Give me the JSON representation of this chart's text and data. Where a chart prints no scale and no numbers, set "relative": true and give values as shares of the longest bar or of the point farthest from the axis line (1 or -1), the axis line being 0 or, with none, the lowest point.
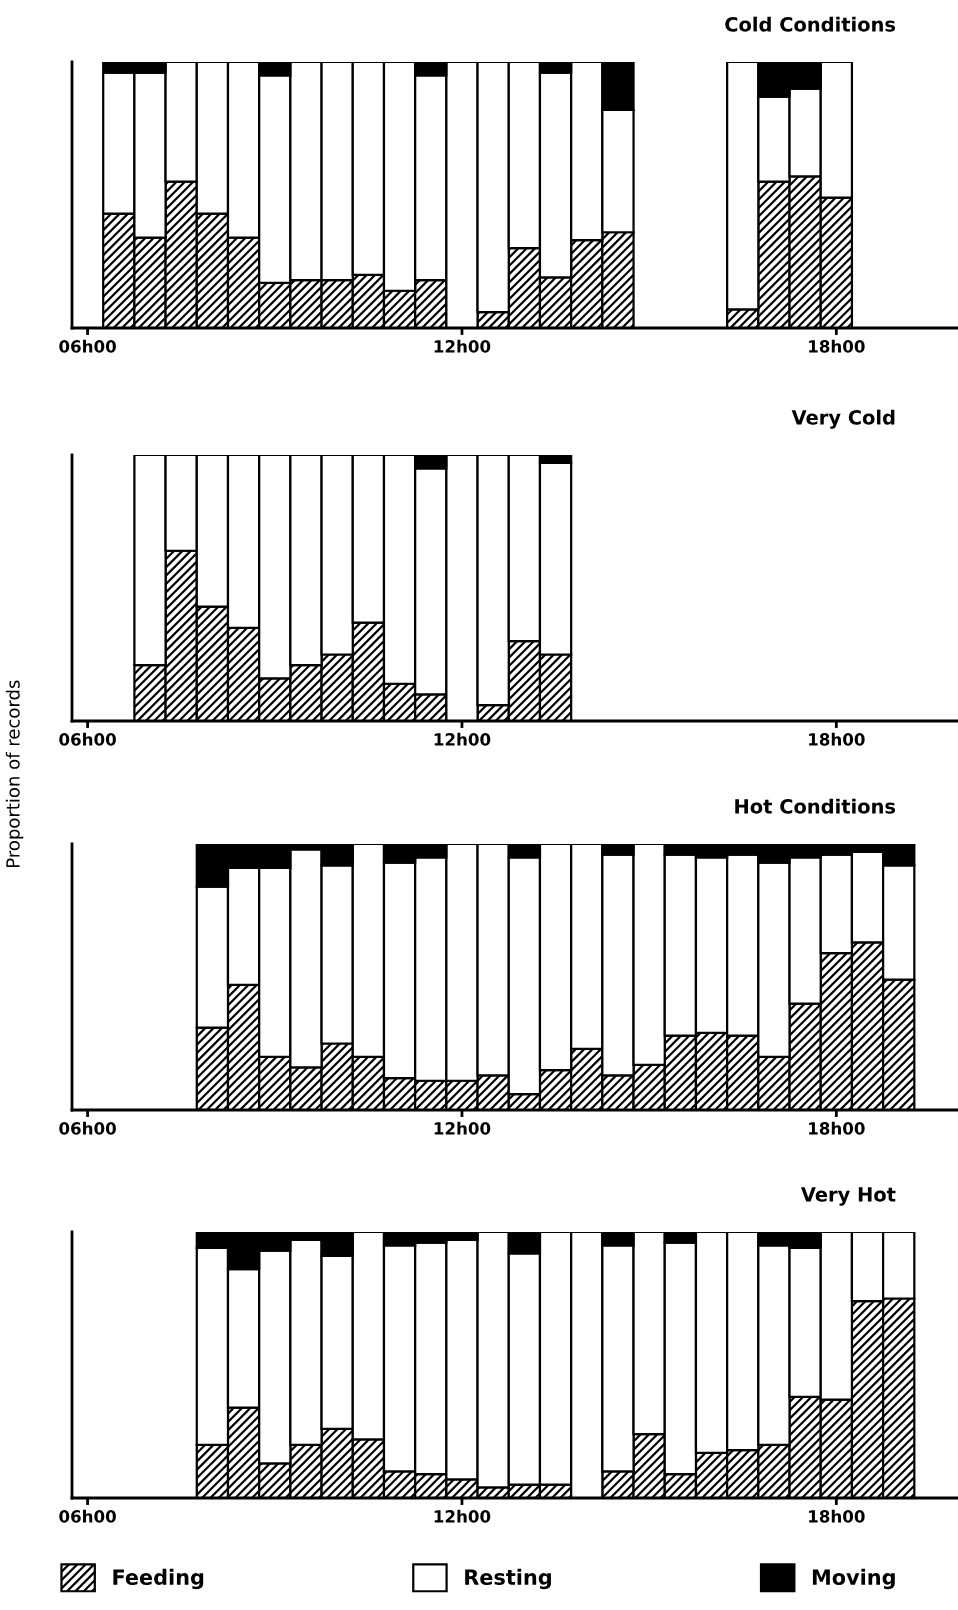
{
  "chart_data": [
    {
      "type": "bar",
      "title": "Cold Conditions",
      "stacked": true,
      "relative": true,
      "tick_labels": "x",
      "legend": false,
      "categories": [
        "06h00",
        null,
        null,
        null,
        null,
        null,
        null,
        null,
        null,
        null,
        null,
        null,
        "12h00",
        null,
        null,
        null,
        null,
        null,
        null,
        null,
        null,
        null,
        null,
        null,
        "18h00",
        null,
        null,
        null
      ],
      "series": [
        {
          "color": "#000000",
          "values": [
            null,
            0.43,
            0.34,
            0.55,
            0.43,
            0.34,
            0.17,
            0.18,
            0.18,
            0.2,
            0.14,
            0.18,
            0,
            0.06,
            0.3,
            0.19,
            0.33,
            0.36,
            null,
            null,
            null,
            0.07,
            0.55,
            0.57,
            0.49,
            null,
            null,
            null
          ]
        },
        {
          "color": "#ffffff",
          "values": [
            null,
            0.53,
            0.62,
            0.45,
            0.57,
            0.66,
            0.78,
            0.82,
            0.82,
            0.8,
            0.86,
            0.77,
            1,
            0.94,
            0.7,
            0.77,
            0.67,
            0.46,
            null,
            null,
            null,
            0.93,
            0.32,
            0.33,
            0.51,
            null,
            null,
            null
          ]
        },
        {
          "color": "#000000",
          "values": [
            null,
            0.04,
            0.04,
            0,
            0,
            0,
            0.05,
            0,
            0,
            0,
            0,
            0.05,
            0,
            0,
            0,
            0.04,
            0,
            0.18,
            null,
            null,
            null,
            0,
            0.13,
            0.1,
            0,
            null,
            null,
            null
          ]
        }
      ]
    },
    {
      "type": "bar",
      "title": "Very Cold",
      "ylabel": "Proportion of records",
      "stacked": true,
      "relative": true,
      "tick_labels": "x",
      "legend": false,
      "categories": [
        "06h00",
        null,
        null,
        null,
        null,
        null,
        null,
        null,
        null,
        null,
        null,
        null,
        "12h00",
        null,
        null,
        null,
        null,
        null,
        null,
        null,
        null,
        null,
        null,
        null,
        "18h00",
        null,
        null,
        null
      ],
      "series": [
        {
          "color": "#000000",
          "values": [
            null,
            null,
            0.21,
            0.64,
            0.43,
            0.35,
            0.16,
            0.21,
            0.25,
            0.37,
            0.14,
            0.1,
            0,
            0.06,
            0.3,
            0.25,
            null,
            null,
            null,
            null,
            null,
            null,
            null,
            null,
            null,
            null,
            null,
            null
          ]
        },
        {
          "color": "#ffffff",
          "values": [
            null,
            null,
            0.79,
            0.36,
            0.57,
            0.65,
            0.84,
            0.79,
            0.75,
            0.63,
            0.86,
            0.85,
            1,
            0.94,
            0.7,
            0.72,
            null,
            null,
            null,
            null,
            null,
            null,
            null,
            null,
            null,
            null,
            null,
            null
          ]
        },
        {
          "color": "#000000",
          "values": [
            null,
            null,
            0,
            0,
            0,
            0,
            0,
            0,
            0,
            0,
            0,
            0.05,
            0,
            0,
            0,
            0.03,
            null,
            null,
            null,
            null,
            null,
            null,
            null,
            null,
            null,
            null,
            null,
            null
          ]
        }
      ]
    },
    {
      "type": "bar",
      "title": "Hot Conditions",
      "stacked": true,
      "relative": true,
      "tick_labels": "x",
      "legend": false,
      "categories": [
        "06h00",
        null,
        null,
        null,
        null,
        null,
        null,
        null,
        null,
        null,
        null,
        null,
        "12h00",
        null,
        null,
        null,
        null,
        null,
        null,
        null,
        null,
        null,
        null,
        null,
        "18h00",
        null,
        null,
        null
      ],
      "series": [
        {
          "color": "#000000",
          "values": [
            null,
            null,
            null,
            null,
            0.31,
            0.47,
            0.2,
            0.16,
            0.25,
            0.2,
            0.12,
            0.11,
            0.11,
            0.13,
            0.06,
            0.15,
            0.23,
            0.13,
            0.17,
            0.28,
            0.29,
            0.28,
            0.2,
            0.4,
            0.59,
            0.63,
            0.49,
            null
          ]
        },
        {
          "color": "#ffffff",
          "values": [
            null,
            null,
            null,
            null,
            0.53,
            0.44,
            0.71,
            0.82,
            0.67,
            0.8,
            0.81,
            0.84,
            0.89,
            0.87,
            0.89,
            0.85,
            0.77,
            0.83,
            0.83,
            0.68,
            0.66,
            0.68,
            0.73,
            0.55,
            0.37,
            0.34,
            0.43,
            null
          ]
        },
        {
          "color": "#000000",
          "values": [
            null,
            null,
            null,
            null,
            0.16,
            0.09,
            0.09,
            0.02,
            0.08,
            0,
            0.07,
            0.05,
            0,
            0,
            0.05,
            0,
            0,
            0.04,
            0,
            0.04,
            0.05,
            0.04,
            0.07,
            0.05,
            0.04,
            0.03,
            0.08,
            null
          ]
        }
      ]
    },
    {
      "type": "bar",
      "title": "Very Hot",
      "stacked": true,
      "relative": true,
      "tick_labels": "x",
      "legend": "bottom",
      "categories": [
        "06h00",
        null,
        null,
        null,
        null,
        null,
        null,
        null,
        null,
        null,
        null,
        null,
        "12h00",
        null,
        null,
        null,
        null,
        null,
        null,
        null,
        null,
        null,
        null,
        null,
        "18h00",
        null,
        null,
        null
      ],
      "series": [
        {
          "name": "Feeding",
          "color": "#000000",
          "values": [
            null,
            null,
            null,
            null,
            0.2,
            0.34,
            0.13,
            0.2,
            0.26,
            0.22,
            0.1,
            0.09,
            0.07,
            0.04,
            0.05,
            0.05,
            0,
            0.1,
            0.24,
            0.09,
            0.17,
            0.18,
            0.2,
            0.38,
            0.37,
            0.74,
            0.75,
            null
          ]
        },
        {
          "name": "Resting",
          "color": "#ffffff",
          "values": [
            null,
            null,
            null,
            null,
            0.74,
            0.52,
            0.8,
            0.77,
            0.65,
            0.78,
            0.85,
            0.87,
            0.9,
            0.96,
            0.87,
            0.95,
            1,
            0.85,
            0.76,
            0.87,
            0.83,
            0.82,
            0.75,
            0.56,
            0.63,
            0.26,
            0.25,
            null
          ]
        },
        {
          "name": "Moving",
          "color": "#000000",
          "values": [
            null,
            null,
            null,
            null,
            0.06,
            0.14,
            0.07,
            0.03,
            0.09,
            0,
            0.05,
            0.04,
            0.03,
            0,
            0.08,
            0,
            0,
            0.05,
            0,
            0.04,
            0,
            0,
            0.05,
            0.06,
            0,
            0,
            0,
            null
          ]
        }
      ]
    }
  ]
}
